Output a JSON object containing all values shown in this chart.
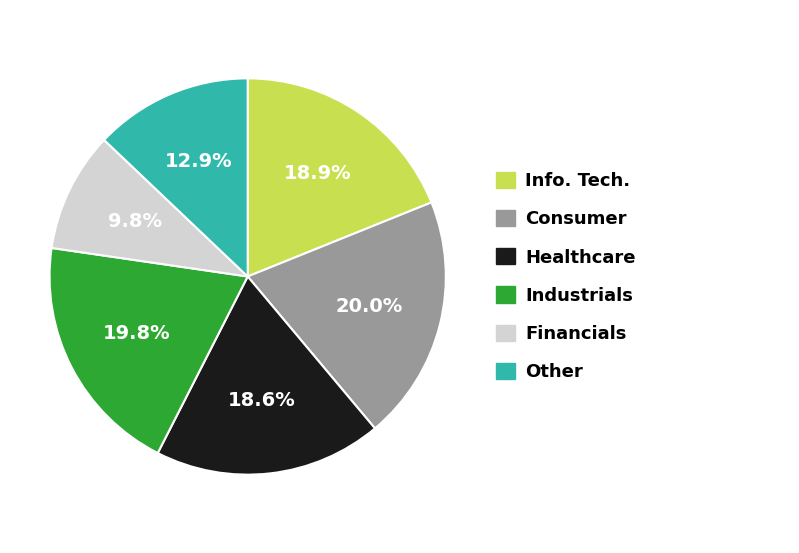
{
  "labels": [
    "Info. Tech.",
    "Consumer",
    "Healthcare",
    "Industrials",
    "Financials",
    "Other"
  ],
  "values": [
    18.9,
    20.0,
    18.6,
    19.8,
    9.8,
    12.9
  ],
  "colors": [
    "#c8e050",
    "#999999",
    "#1a1a1a",
    "#2da832",
    "#d4d4d4",
    "#30b8aa"
  ],
  "pct_labels": [
    "18.9%",
    "20.0%",
    "18.6%",
    "19.8%",
    "9.8%",
    "12.9%"
  ],
  "pct_colors": [
    "white",
    "white",
    "white",
    "white",
    "white",
    "white"
  ],
  "startangle": 90,
  "figsize": [
    7.99,
    5.53
  ],
  "legend_fontsize": 13,
  "pct_fontsize": 14,
  "background_color": "#ffffff"
}
